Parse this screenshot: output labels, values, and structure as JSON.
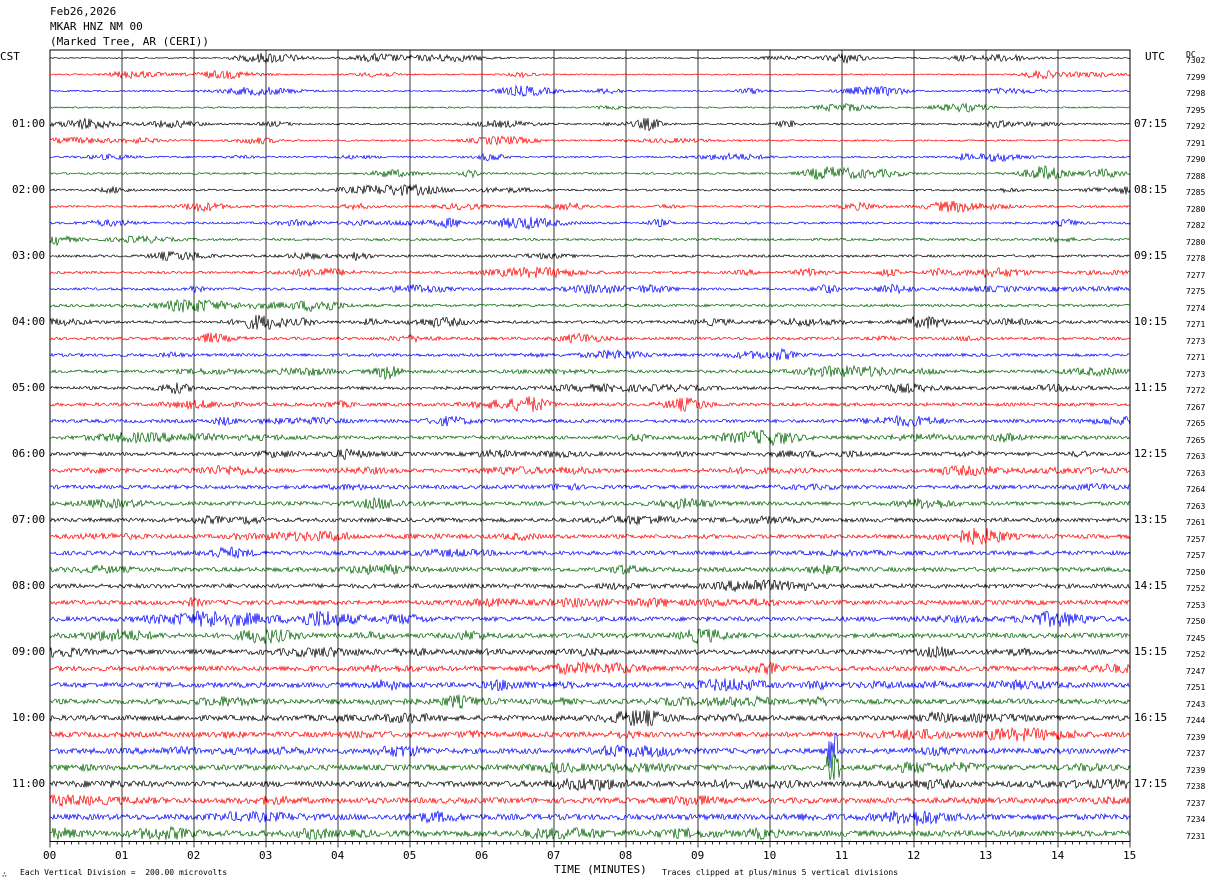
{
  "header": {
    "date": "Feb26,2026",
    "station": "MKAR HNZ NM 00",
    "location": "(Marked Tree, AR (CERI))"
  },
  "left_axis_title": "CST",
  "right_axis_title": "UTC",
  "dc_label": "DC",
  "footer": {
    "scale_note": "Each Vertical Division =  200.00 microvolts",
    "clip_note": "Traces clipped at plus/minus 5 vertical divisions",
    "corner_mark": "∴"
  },
  "chart_data": {
    "type": "line",
    "title": "",
    "xlabel": "TIME (MINUTES)",
    "ylabel": "",
    "xlim": [
      0,
      15
    ],
    "x_ticks": [
      "00",
      "01",
      "02",
      "03",
      "04",
      "05",
      "06",
      "07",
      "08",
      "09",
      "10",
      "11",
      "12",
      "13",
      "14",
      "15"
    ],
    "trace_colors": [
      "#000000",
      "#ff0000",
      "#0000ff",
      "#006400"
    ],
    "left_time_labels": [
      "01:00",
      "02:00",
      "03:00",
      "04:00",
      "05:00",
      "06:00",
      "07:00",
      "08:00",
      "09:00",
      "10:00",
      "11:00"
    ],
    "right_time_labels": [
      "07:15",
      "08:15",
      "09:15",
      "10:15",
      "11:15",
      "12:15",
      "13:15",
      "14:15",
      "15:15",
      "16:15",
      "17:15"
    ],
    "dc_offsets": [
      7302,
      7299,
      7298,
      7295,
      7292,
      7291,
      7290,
      7288,
      7285,
      7280,
      7282,
      7280,
      7278,
      7277,
      7275,
      7274,
      7271,
      7273,
      7271,
      7273,
      7272,
      7267,
      7265,
      7265,
      7263,
      7263,
      7264,
      7263,
      7261,
      7257,
      7257,
      7250,
      7252,
      7253,
      7250,
      7245,
      7252,
      7247,
      7251,
      7243,
      7244,
      7239,
      7237,
      7239,
      7238,
      7237,
      7234,
      7231
    ],
    "trace_count": 48
  }
}
